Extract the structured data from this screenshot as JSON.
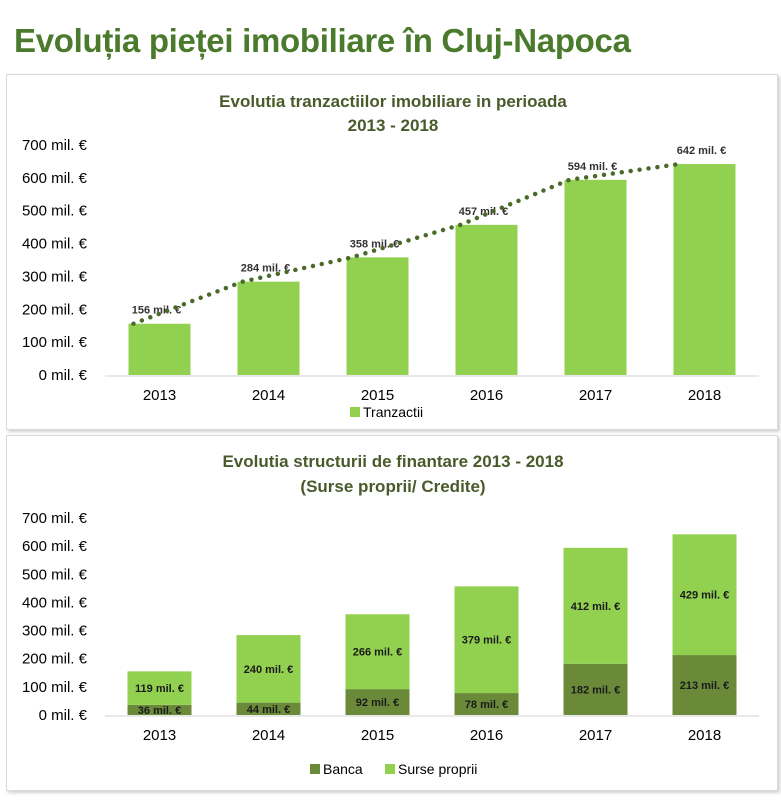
{
  "page": {
    "title": "Evoluția pieței imobiliare în Cluj-Napoca"
  },
  "colors": {
    "light_green": "#92d050",
    "dark_green": "#6a8a3a",
    "trend_dots": "#4a6a2a",
    "title_green": "#4a7a2c"
  },
  "chart_data": [
    {
      "type": "bar",
      "title_lines": [
        "Evolutia tranzactiilor imobiliare in perioada",
        "2013 - 2018"
      ],
      "categories": [
        "2013",
        "2014",
        "2015",
        "2016",
        "2017",
        "2018"
      ],
      "series": [
        {
          "name": "Tranzactii",
          "values": [
            156,
            284,
            358,
            457,
            594,
            642
          ],
          "labels": [
            "156 mil. €",
            "284 mil. €",
            "358 mil. €",
            "457 mil. €",
            "594 mil. €",
            "642 mil. €"
          ]
        }
      ],
      "trendline": "dotted",
      "y_ticks": [
        "0 mil. €",
        "100 mil. €",
        "200 mil. €",
        "300 mil. €",
        "400 mil. €",
        "500 mil. €",
        "600 mil. €",
        "700 mil. €"
      ],
      "ylim": [
        0,
        700
      ],
      "grid": false,
      "legend": "bottom"
    },
    {
      "type": "bar",
      "stacked": true,
      "title_lines": [
        "Evolutia structurii de finantare 2013 - 2018",
        "(Surse proprii/ Credite)"
      ],
      "categories": [
        "2013",
        "2014",
        "2015",
        "2016",
        "2017",
        "2018"
      ],
      "series": [
        {
          "name": "Banca",
          "values": [
            36,
            44,
            92,
            78,
            182,
            213
          ],
          "labels": [
            "36 mil. €",
            "44 mil. €",
            "92 mil. €",
            "78 mil. €",
            "182 mil. €",
            "213 mil. €"
          ]
        },
        {
          "name": "Surse proprii",
          "values": [
            119,
            240,
            266,
            379,
            412,
            429
          ],
          "labels": [
            "119 mil. €",
            "240 mil. €",
            "266 mil. €",
            "379 mil. €",
            "412 mil. €",
            "429 mil. €"
          ]
        }
      ],
      "y_ticks": [
        "0 mil. €",
        "100 mil. €",
        "200 mil. €",
        "300 mil. €",
        "400 mil. €",
        "500 mil. €",
        "600 mil. €",
        "700 mil. €"
      ],
      "ylim": [
        0,
        700
      ],
      "grid": false,
      "legend": "bottom"
    }
  ]
}
